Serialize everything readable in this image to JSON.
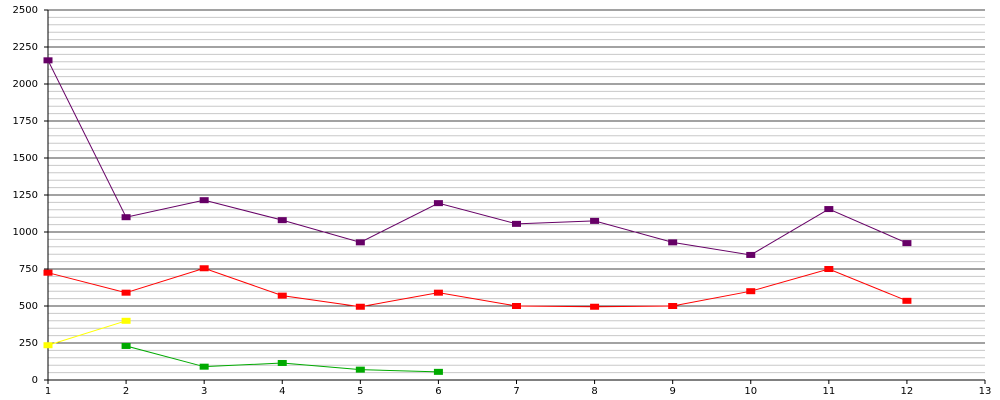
{
  "chart_data": {
    "type": "line",
    "x": [
      1,
      2,
      3,
      4,
      5,
      6,
      7,
      8,
      9,
      10,
      11,
      12
    ],
    "series": [
      {
        "color": "#660066",
        "values": [
          2160,
          1100,
          1215,
          1080,
          930,
          1195,
          1055,
          1075,
          930,
          845,
          1155,
          925
        ]
      },
      {
        "color": "#ff0000",
        "values": [
          725,
          590,
          755,
          570,
          495,
          590,
          500,
          495,
          500,
          600,
          750,
          535
        ]
      },
      {
        "color": "#ffff00",
        "values": [
          235,
          400,
          null,
          null,
          null,
          null,
          null,
          null,
          null,
          null,
          null,
          null
        ]
      },
      {
        "color": "#00aa00",
        "values": [
          null,
          230,
          90,
          115,
          70,
          55,
          null,
          null,
          null,
          null,
          null,
          null
        ]
      }
    ],
    "xlim": [
      1,
      13
    ],
    "xticks": [
      1,
      2,
      3,
      4,
      5,
      6,
      7,
      8,
      9,
      10,
      11,
      12,
      13
    ],
    "ylim": [
      0,
      2500
    ],
    "yticks": [
      0,
      250,
      500,
      750,
      1000,
      1250,
      1500,
      1750,
      2000,
      2250,
      2500
    ],
    "grid": true
  }
}
